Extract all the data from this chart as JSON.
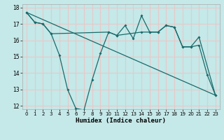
{
  "xlabel": "Humidex (Indice chaleur)",
  "background_color": "#c5e8e8",
  "grid_color": "#e8c8c8",
  "line_color": "#1a6b6b",
  "xlim": [
    -0.5,
    23.5
  ],
  "ylim": [
    11.8,
    18.2
  ],
  "yticks": [
    12,
    13,
    14,
    15,
    16,
    17,
    18
  ],
  "xticks": [
    0,
    1,
    2,
    3,
    4,
    5,
    6,
    7,
    8,
    9,
    10,
    11,
    12,
    13,
    14,
    15,
    16,
    17,
    18,
    19,
    20,
    21,
    22,
    23
  ],
  "line1_x": [
    0,
    1,
    2,
    3,
    4,
    5,
    6,
    7,
    8,
    9,
    10,
    11,
    12,
    13,
    14,
    15,
    16,
    17,
    18,
    19,
    20,
    21,
    22,
    23
  ],
  "line1_y": [
    17.7,
    17.1,
    17.0,
    16.4,
    15.1,
    13.0,
    11.85,
    11.75,
    13.6,
    15.2,
    16.5,
    16.3,
    16.9,
    16.1,
    17.5,
    16.5,
    16.5,
    16.9,
    16.8,
    15.6,
    15.6,
    15.7,
    13.9,
    12.65
  ],
  "line2_x": [
    0,
    23
  ],
  "line2_y": [
    17.7,
    12.65
  ],
  "line3_x": [
    0,
    1,
    2,
    3,
    10,
    11,
    14,
    15,
    16,
    17,
    18,
    19,
    20,
    21,
    23
  ],
  "line3_y": [
    17.7,
    17.1,
    17.0,
    16.4,
    16.5,
    16.3,
    16.5,
    16.5,
    16.5,
    16.9,
    16.8,
    15.6,
    15.6,
    16.2,
    12.65
  ]
}
